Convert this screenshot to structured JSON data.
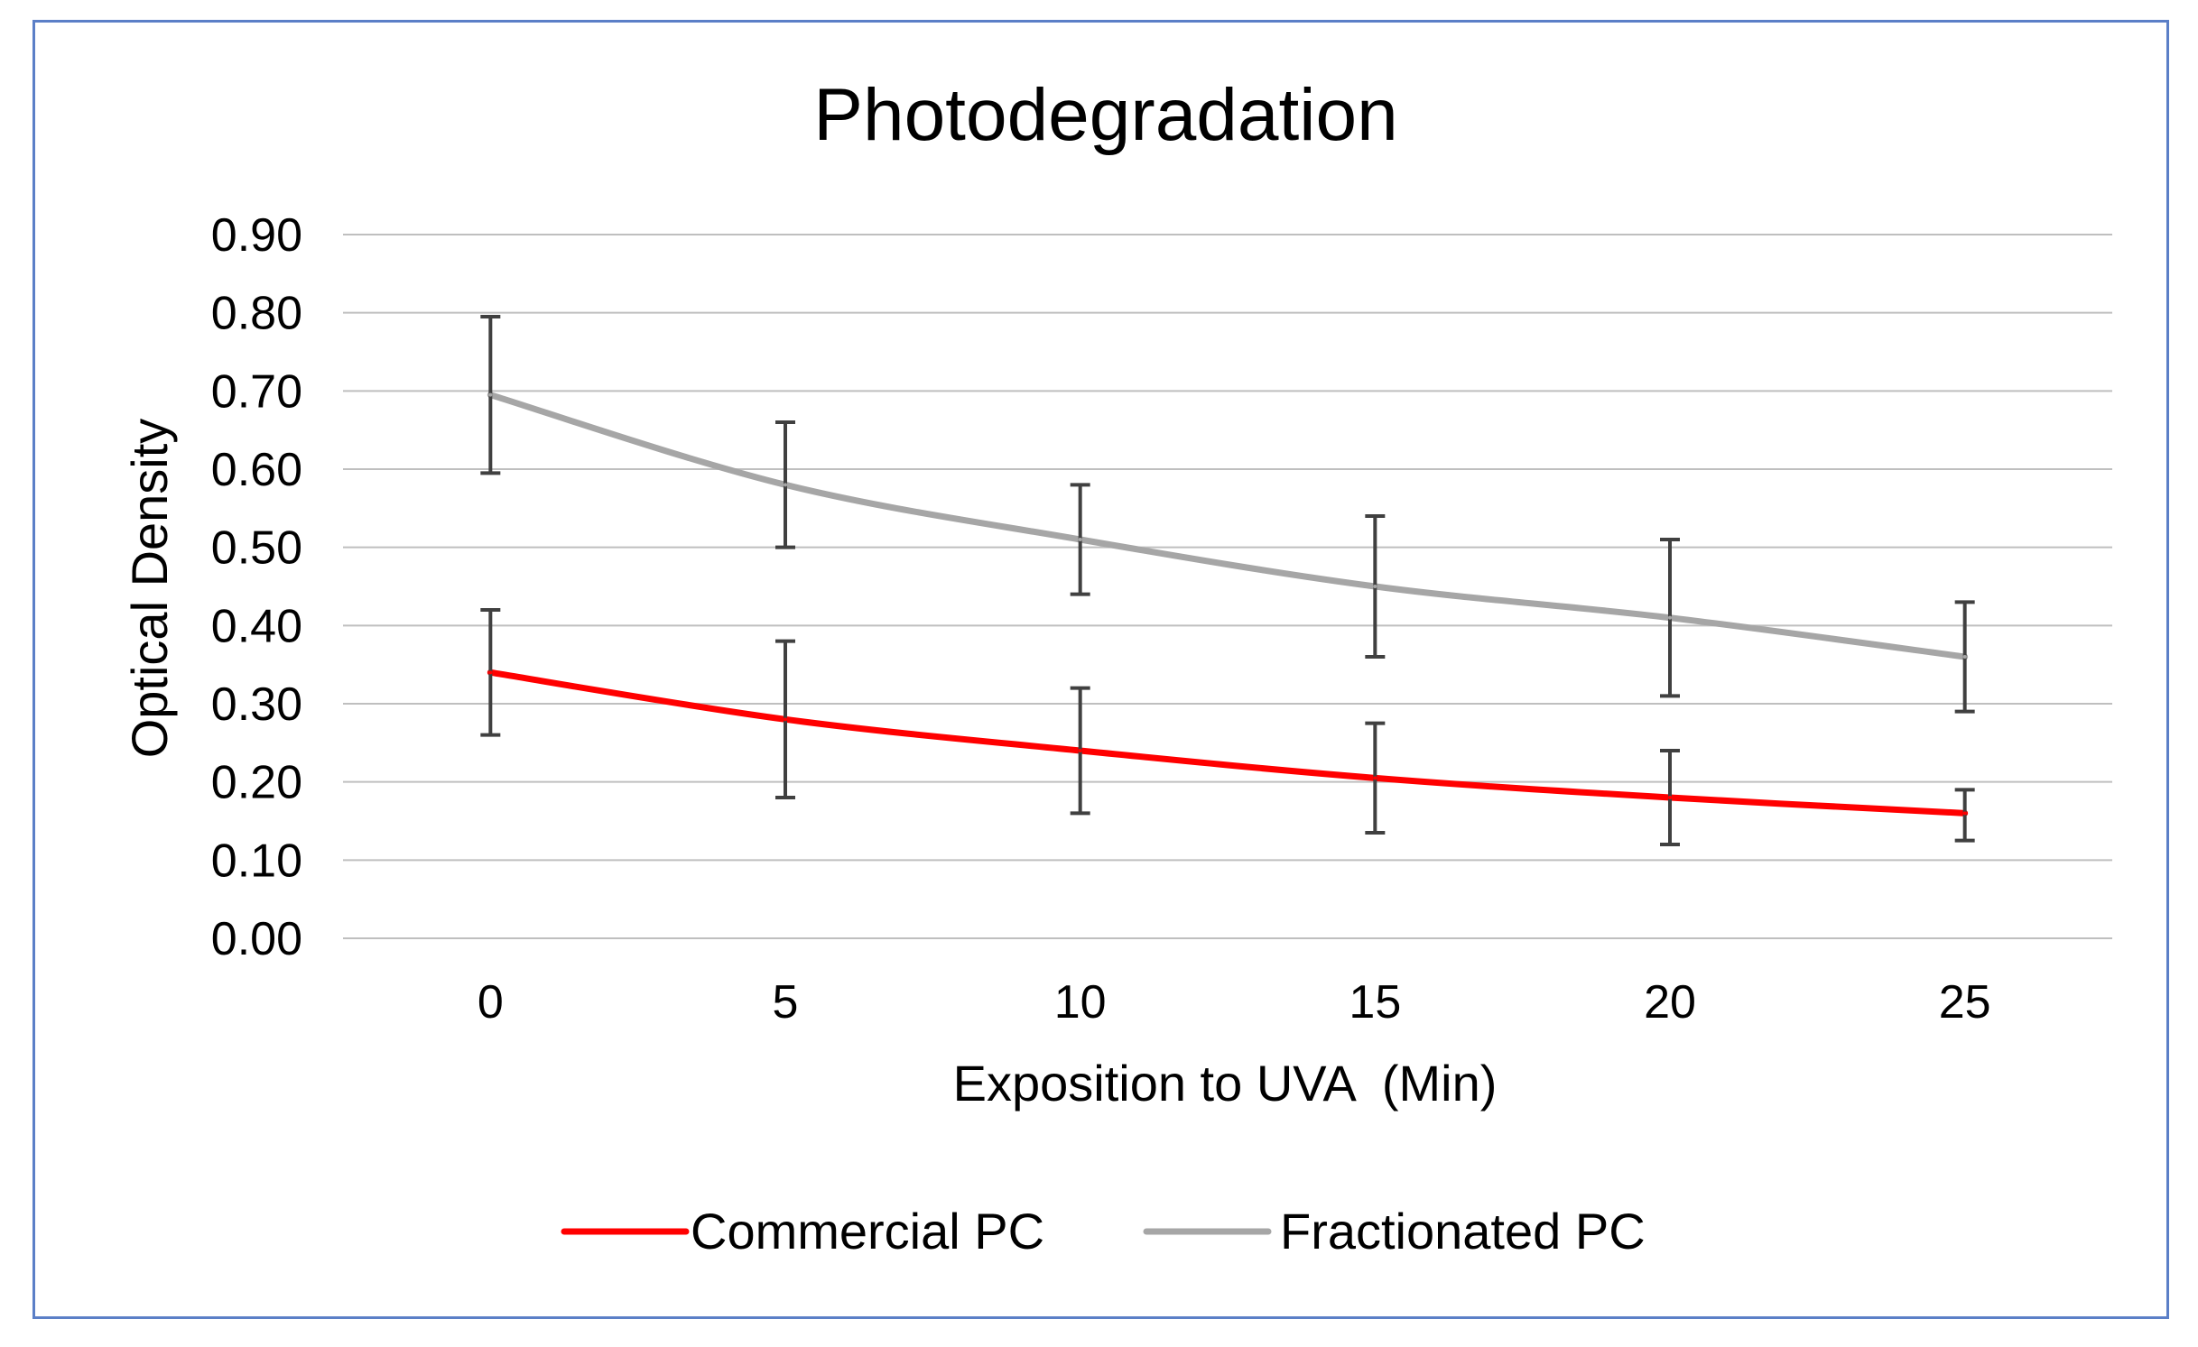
{
  "chart_data": {
    "type": "line",
    "title": "Photodegradation",
    "xlabel": "Exposition to UVA  (Min)",
    "ylabel": "Optical Density",
    "categories": [
      "0",
      "5",
      "10",
      "15",
      "20",
      "25"
    ],
    "ylim": [
      0,
      0.9
    ],
    "yticks": [
      "0.00",
      "0.10",
      "0.20",
      "0.30",
      "0.40",
      "0.50",
      "0.60",
      "0.70",
      "0.80",
      "0.90"
    ],
    "grid": true,
    "legend_position": "bottom",
    "series": [
      {
        "name": "Commercial PC",
        "color": "#ff0000",
        "values": [
          0.34,
          0.28,
          0.24,
          0.205,
          0.18,
          0.16
        ],
        "error_low": [
          0.26,
          0.18,
          0.16,
          0.135,
          0.12,
          0.125
        ],
        "error_high": [
          0.42,
          0.38,
          0.32,
          0.275,
          0.24,
          0.19
        ]
      },
      {
        "name": "Fractionated PC",
        "color": "#a6a6a6",
        "values": [
          0.695,
          0.58,
          0.51,
          0.45,
          0.41,
          0.36
        ],
        "error_low": [
          0.595,
          0.5,
          0.44,
          0.36,
          0.31,
          0.29
        ],
        "error_high": [
          0.795,
          0.66,
          0.58,
          0.54,
          0.51,
          0.43
        ]
      }
    ],
    "error_bar_color": "#404040",
    "grid_color": "#bfbfbf"
  }
}
